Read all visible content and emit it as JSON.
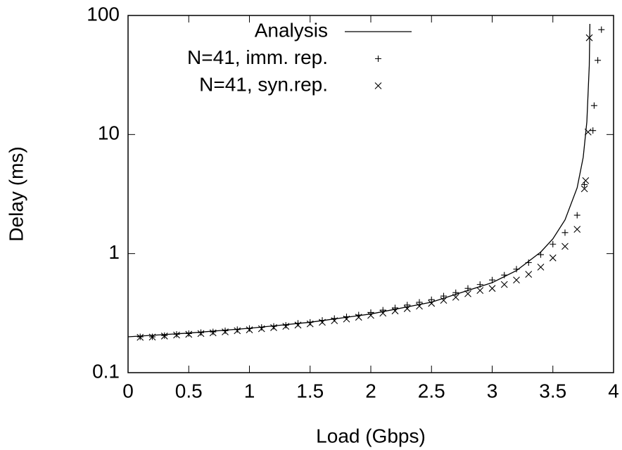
{
  "chart_data": {
    "type": "line",
    "xlabel": "Load (Gbps)",
    "ylabel": "Delay (ms)",
    "xlim": [
      0,
      4
    ],
    "xticks": [
      0,
      0.5,
      1,
      1.5,
      2,
      2.5,
      3,
      3.5,
      4
    ],
    "ylim": [
      0.1,
      100
    ],
    "yticks": [
      0.1,
      1,
      10,
      100
    ],
    "log_y": true,
    "legend": "top-right",
    "series": [
      {
        "name": "Analysis",
        "style": "line",
        "color": "#000000",
        "x": [
          0,
          0.5,
          1,
          1.5,
          2,
          2.5,
          3,
          3.2,
          3.4,
          3.5,
          3.6,
          3.7,
          3.75,
          3.78,
          3.8,
          3.805
        ],
        "values": [
          0.2,
          0.215,
          0.236,
          0.265,
          0.311,
          0.391,
          0.57,
          0.72,
          1.03,
          1.33,
          1.92,
          3.57,
          6.44,
          12.8,
          38,
          85
        ]
      },
      {
        "name": "N=41, imm. rep.",
        "style": "plus",
        "color": "#000000",
        "x": [
          0.1,
          0.2,
          0.3,
          0.4,
          0.5,
          0.6,
          0.7,
          0.8,
          0.9,
          1.0,
          1.1,
          1.2,
          1.3,
          1.4,
          1.5,
          1.6,
          1.7,
          1.8,
          1.9,
          2.0,
          2.1,
          2.2,
          2.3,
          2.4,
          2.5,
          2.6,
          2.7,
          2.8,
          2.9,
          3.0,
          3.1,
          3.2,
          3.3,
          3.4,
          3.5,
          3.6,
          3.7,
          3.76,
          3.83,
          3.84,
          3.87,
          3.9
        ],
        "values": [
          0.2,
          0.2,
          0.205,
          0.21,
          0.213,
          0.217,
          0.22,
          0.225,
          0.23,
          0.235,
          0.24,
          0.245,
          0.25,
          0.26,
          0.265,
          0.275,
          0.285,
          0.295,
          0.305,
          0.32,
          0.335,
          0.35,
          0.37,
          0.39,
          0.41,
          0.44,
          0.47,
          0.51,
          0.55,
          0.6,
          0.66,
          0.74,
          0.84,
          0.98,
          1.2,
          1.5,
          2.1,
          3.8,
          10.8,
          17.5,
          42,
          76
        ]
      },
      {
        "name": "N=41, syn.rep.",
        "style": "cross",
        "color": "#000000",
        "x": [
          0.1,
          0.2,
          0.3,
          0.4,
          0.5,
          0.6,
          0.7,
          0.8,
          0.9,
          1.0,
          1.1,
          1.2,
          1.3,
          1.4,
          1.5,
          1.6,
          1.7,
          1.8,
          1.9,
          2.0,
          2.1,
          2.2,
          2.3,
          2.4,
          2.5,
          2.6,
          2.7,
          2.8,
          2.9,
          3.0,
          3.1,
          3.2,
          3.3,
          3.4,
          3.5,
          3.6,
          3.7,
          3.76,
          3.77,
          3.79,
          3.8
        ],
        "values": [
          0.198,
          0.199,
          0.203,
          0.207,
          0.21,
          0.213,
          0.216,
          0.22,
          0.225,
          0.229,
          0.234,
          0.239,
          0.245,
          0.251,
          0.257,
          0.265,
          0.273,
          0.282,
          0.292,
          0.303,
          0.316,
          0.33,
          0.345,
          0.362,
          0.382,
          0.405,
          0.43,
          0.46,
          0.49,
          0.51,
          0.55,
          0.6,
          0.67,
          0.77,
          0.92,
          1.15,
          1.6,
          3.5,
          4.1,
          10.5,
          65
        ]
      }
    ]
  }
}
